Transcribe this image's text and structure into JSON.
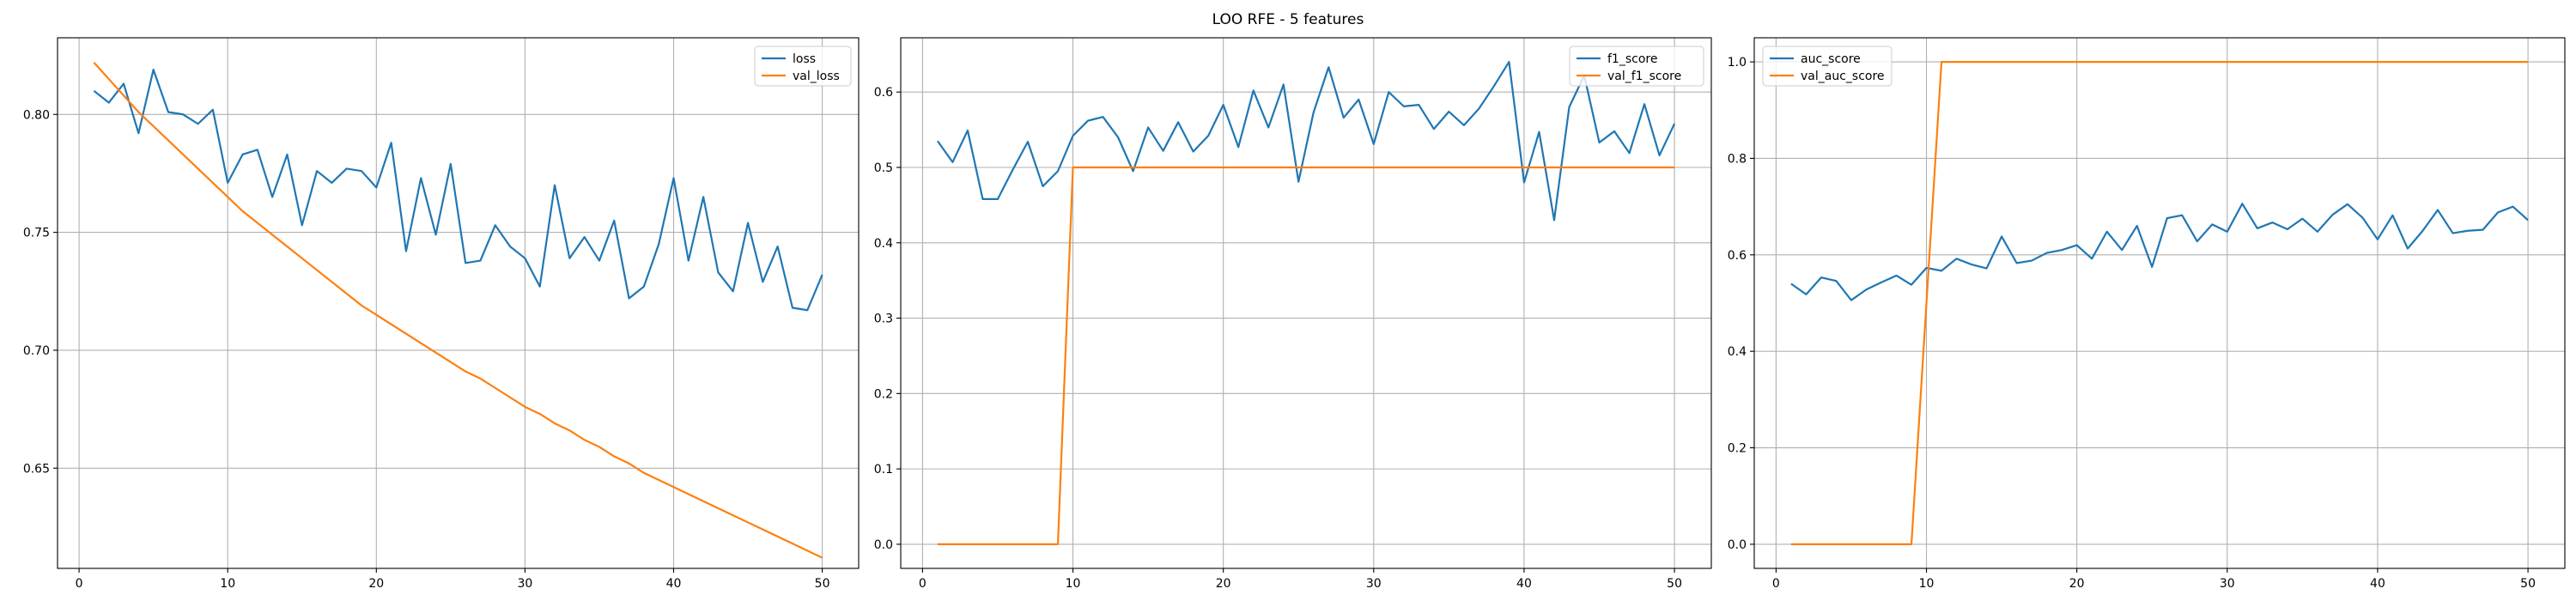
{
  "title": "LOO RFE - 5 features",
  "colors": {
    "series_1": "#1f77b4",
    "series_2": "#ff7f0e",
    "grid": "#b0b0b0",
    "axis": "#000000"
  },
  "chart_data": [
    {
      "type": "line",
      "title": "",
      "xlabel": "",
      "ylabel": "",
      "grid": true,
      "legend_position": "top-right",
      "xlim": [
        -1.45,
        52.45
      ],
      "ylim": [
        0.6075,
        0.8325
      ],
      "xticks": [
        0,
        10,
        20,
        30,
        40,
        50
      ],
      "yticks": [
        0.65,
        0.7,
        0.75,
        0.8
      ],
      "ytick_decimals": 2,
      "x": [
        1,
        2,
        3,
        4,
        5,
        6,
        7,
        8,
        9,
        10,
        11,
        12,
        13,
        14,
        15,
        16,
        17,
        18,
        19,
        20,
        21,
        22,
        23,
        24,
        25,
        26,
        27,
        28,
        29,
        30,
        31,
        32,
        33,
        34,
        35,
        36,
        37,
        38,
        39,
        40,
        41,
        42,
        43,
        44,
        45,
        46,
        47,
        48,
        49,
        50
      ],
      "series": [
        {
          "name": "loss",
          "values": [
            0.81,
            0.805,
            0.813,
            0.792,
            0.819,
            0.801,
            0.8,
            0.796,
            0.802,
            0.771,
            0.783,
            0.785,
            0.765,
            0.783,
            0.753,
            0.776,
            0.771,
            0.777,
            0.776,
            0.769,
            0.788,
            0.742,
            0.773,
            0.749,
            0.779,
            0.737,
            0.738,
            0.753,
            0.744,
            0.739,
            0.727,
            0.77,
            0.739,
            0.748,
            0.738,
            0.755,
            0.722,
            0.727,
            0.745,
            0.773,
            0.738,
            0.765,
            0.733,
            0.725,
            0.754,
            0.729,
            0.744,
            0.718,
            0.717,
            0.732
          ]
        },
        {
          "name": "val_loss",
          "values": [
            0.822,
            0.815,
            0.808,
            0.801,
            0.795,
            0.789,
            0.783,
            0.777,
            0.771,
            0.765,
            0.759,
            0.754,
            0.749,
            0.744,
            0.739,
            0.734,
            0.729,
            0.724,
            0.719,
            0.715,
            0.711,
            0.707,
            0.703,
            0.699,
            0.695,
            0.691,
            0.688,
            0.684,
            0.68,
            0.676,
            0.673,
            0.669,
            0.666,
            0.662,
            0.659,
            0.655,
            0.652,
            0.648,
            0.645,
            0.642,
            0.639,
            0.636,
            0.633,
            0.63,
            0.627,
            0.624,
            0.621,
            0.618,
            0.615,
            0.612
          ]
        }
      ]
    },
    {
      "type": "line",
      "title": "",
      "xlabel": "",
      "ylabel": "",
      "grid": true,
      "legend_position": "top-right",
      "xlim": [
        -1.45,
        52.45
      ],
      "ylim": [
        -0.032,
        0.672
      ],
      "xticks": [
        0,
        10,
        20,
        30,
        40,
        50
      ],
      "yticks": [
        0.0,
        0.1,
        0.2,
        0.3,
        0.4,
        0.5,
        0.6
      ],
      "ytick_decimals": 1,
      "x": [
        1,
        2,
        3,
        4,
        5,
        6,
        7,
        8,
        9,
        10,
        11,
        12,
        13,
        14,
        15,
        16,
        17,
        18,
        19,
        20,
        21,
        22,
        23,
        24,
        25,
        26,
        27,
        28,
        29,
        30,
        31,
        32,
        33,
        34,
        35,
        36,
        37,
        38,
        39,
        40,
        41,
        42,
        43,
        44,
        45,
        46,
        47,
        48,
        49,
        50
      ],
      "series": [
        {
          "name": "f1_score",
          "values": [
            0.535,
            0.507,
            0.549,
            0.458,
            0.458,
            0.497,
            0.534,
            0.475,
            0.495,
            0.542,
            0.562,
            0.567,
            0.54,
            0.495,
            0.553,
            0.522,
            0.56,
            0.521,
            0.542,
            0.583,
            0.527,
            0.602,
            0.553,
            0.61,
            0.481,
            0.573,
            0.633,
            0.566,
            0.59,
            0.531,
            0.6,
            0.581,
            0.583,
            0.551,
            0.574,
            0.556,
            0.578,
            0.608,
            0.64,
            0.48,
            0.547,
            0.43,
            0.58,
            0.622,
            0.533,
            0.548,
            0.519,
            0.584,
            0.516,
            0.558
          ]
        },
        {
          "name": "val_f1_score",
          "values": [
            0.0,
            0.0,
            0.0,
            0.0,
            0.0,
            0.0,
            0.0,
            0.0,
            0.0,
            0.5,
            0.5,
            0.5,
            0.5,
            0.5,
            0.5,
            0.5,
            0.5,
            0.5,
            0.5,
            0.5,
            0.5,
            0.5,
            0.5,
            0.5,
            0.5,
            0.5,
            0.5,
            0.5,
            0.5,
            0.5,
            0.5,
            0.5,
            0.5,
            0.5,
            0.5,
            0.5,
            0.5,
            0.5,
            0.5,
            0.5,
            0.5,
            0.5,
            0.5,
            0.5,
            0.5,
            0.5,
            0.5,
            0.5,
            0.5,
            0.5
          ]
        }
      ]
    },
    {
      "type": "line",
      "title": "",
      "xlabel": "",
      "ylabel": "",
      "grid": true,
      "legend_position": "top-left",
      "xlim": [
        -1.45,
        52.45
      ],
      "ylim": [
        -0.05,
        1.05
      ],
      "xticks": [
        0,
        10,
        20,
        30,
        40,
        50
      ],
      "yticks": [
        0.0,
        0.2,
        0.4,
        0.6,
        0.8,
        1.0
      ],
      "ytick_decimals": 1,
      "x": [
        1,
        2,
        3,
        4,
        5,
        6,
        7,
        8,
        9,
        10,
        11,
        12,
        13,
        14,
        15,
        16,
        17,
        18,
        19,
        20,
        21,
        22,
        23,
        24,
        25,
        26,
        27,
        28,
        29,
        30,
        31,
        32,
        33,
        34,
        35,
        36,
        37,
        38,
        39,
        40,
        41,
        42,
        43,
        44,
        45,
        46,
        47,
        48,
        49,
        50
      ],
      "series": [
        {
          "name": "auc_score",
          "values": [
            0.54,
            0.518,
            0.553,
            0.546,
            0.506,
            0.528,
            0.543,
            0.557,
            0.538,
            0.573,
            0.567,
            0.592,
            0.58,
            0.572,
            0.638,
            0.583,
            0.588,
            0.604,
            0.61,
            0.62,
            0.592,
            0.648,
            0.61,
            0.66,
            0.575,
            0.676,
            0.682,
            0.628,
            0.663,
            0.648,
            0.706,
            0.655,
            0.667,
            0.653,
            0.675,
            0.648,
            0.683,
            0.705,
            0.677,
            0.632,
            0.682,
            0.613,
            0.65,
            0.693,
            0.645,
            0.65,
            0.652,
            0.688,
            0.7,
            0.672
          ]
        },
        {
          "name": "val_auc_score",
          "values": [
            0.0,
            0.0,
            0.0,
            0.0,
            0.0,
            0.0,
            0.0,
            0.0,
            0.0,
            0.5,
            1.0,
            1.0,
            1.0,
            1.0,
            1.0,
            1.0,
            1.0,
            1.0,
            1.0,
            1.0,
            1.0,
            1.0,
            1.0,
            1.0,
            1.0,
            1.0,
            1.0,
            1.0,
            1.0,
            1.0,
            1.0,
            1.0,
            1.0,
            1.0,
            1.0,
            1.0,
            1.0,
            1.0,
            1.0,
            1.0,
            1.0,
            1.0,
            1.0,
            1.0,
            1.0,
            1.0,
            1.0,
            1.0,
            1.0,
            1.0
          ]
        }
      ]
    }
  ]
}
